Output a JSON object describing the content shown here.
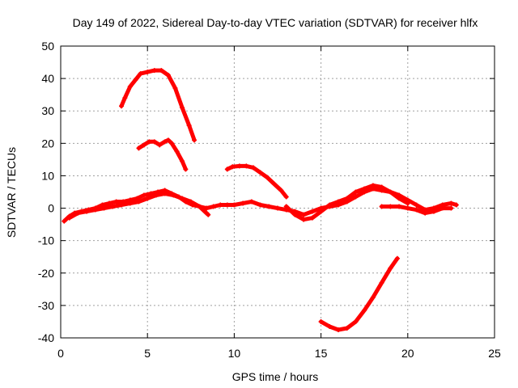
{
  "chart_data": {
    "type": "scatter",
    "title": "Day 149 of 2022, Sidereal Day-to-day VTEC variation (SDTVAR) for receiver hlfx",
    "xlabel": "GPS time / hours",
    "ylabel": "SDTVAR / TECUs",
    "xlim": [
      0,
      25
    ],
    "ylim": [
      -40,
      50
    ],
    "xticks": [
      0,
      5,
      10,
      15,
      20,
      25
    ],
    "yticks": [
      -40,
      -30,
      -20,
      -10,
      0,
      10,
      20,
      30,
      40,
      50
    ],
    "grid": true,
    "series_color": "#ff0000",
    "series": [
      {
        "name": "arc-main-a",
        "x": [
          0.2,
          0.5,
          0.8,
          1.2,
          1.6,
          2.0,
          2.4,
          2.8,
          3.2,
          3.6,
          4.0,
          4.4,
          4.8,
          5.2,
          5.6,
          6.0,
          6.4,
          6.8,
          7.2,
          7.6,
          8.0,
          8.4,
          8.8,
          9.2,
          9.6,
          10.0,
          10.5,
          11.0,
          11.5,
          12.0,
          12.5,
          13.0,
          13.5,
          14.0,
          14.5,
          15.0,
          15.5,
          16.0,
          16.5,
          17.0,
          17.5,
          18.0,
          18.5,
          19.0,
          19.5,
          20.0,
          20.5,
          21.0,
          21.5,
          22.0,
          22.5,
          22.8
        ],
        "y": [
          -4,
          -2.5,
          -1.5,
          -1,
          -0.5,
          0,
          1,
          1.5,
          2,
          2,
          2.5,
          3,
          4,
          4.5,
          5,
          5.5,
          4.5,
          3.5,
          2,
          1,
          0.5,
          0,
          0.5,
          1,
          1,
          1,
          1.5,
          2,
          1,
          0.5,
          0,
          -0.5,
          -1,
          -2,
          -1,
          0,
          0.5,
          1,
          2,
          3.5,
          5,
          6,
          5.5,
          5,
          4,
          2.5,
          1,
          -0.5,
          0,
          1,
          1.5,
          1
        ]
      },
      {
        "name": "arc-main-b",
        "x": [
          0.5,
          1.0,
          1.5,
          2.0,
          2.5,
          3.0,
          3.5,
          4.0,
          4.5,
          5.0,
          5.5,
          6.0,
          6.5,
          7.0,
          7.5,
          8.0,
          8.5
        ],
        "y": [
          -3,
          -1.5,
          -1,
          -0.5,
          0,
          0.5,
          1,
          1.5,
          2,
          3,
          4,
          4.5,
          4,
          3,
          2,
          0.5,
          -2
        ]
      },
      {
        "name": "arc-hump-40",
        "x": [
          3.5,
          3.7,
          4.0,
          4.3,
          4.6,
          5.0,
          5.4,
          5.8,
          6.2,
          6.6,
          7.0,
          7.4,
          7.7
        ],
        "y": [
          31.5,
          34,
          37.5,
          39.5,
          41.5,
          42,
          42.5,
          42.5,
          41,
          37,
          31,
          25.5,
          21
        ]
      },
      {
        "name": "arc-hump-20",
        "x": [
          4.5,
          4.8,
          5.1,
          5.4,
          5.7,
          6.0,
          6.2,
          6.4,
          6.7,
          7.0,
          7.2
        ],
        "y": [
          18.5,
          19.5,
          20.5,
          20.5,
          19.5,
          20.5,
          21,
          20,
          17.5,
          14.5,
          12
        ]
      },
      {
        "name": "arc-10",
        "x": [
          9.6,
          9.9,
          10.3,
          10.7,
          11.1,
          11.5,
          11.9,
          12.3,
          12.7,
          13.0
        ],
        "y": [
          12,
          12.8,
          13,
          13,
          12.5,
          11,
          9.5,
          7.5,
          5.5,
          3.5
        ]
      },
      {
        "name": "arc-dip-neg",
        "x": [
          15.0,
          15.5,
          16.0,
          16.5,
          17.0,
          17.5,
          18.0,
          18.5,
          19.0,
          19.4
        ],
        "y": [
          -35,
          -36.5,
          -37.5,
          -37,
          -35,
          -31.5,
          -27.5,
          -23,
          -18.5,
          -15.5
        ]
      },
      {
        "name": "arc-late",
        "x": [
          18.5,
          19.0,
          19.5,
          20.0,
          20.5,
          21.0,
          21.5,
          22.0,
          22.5
        ],
        "y": [
          0.5,
          0.5,
          0.5,
          0,
          -0.5,
          -1.5,
          -1,
          0,
          0
        ]
      },
      {
        "name": "arc-mid",
        "x": [
          13.0,
          13.5,
          14.0,
          14.5,
          15.0,
          15.5,
          16.0,
          16.5,
          17.0,
          17.5,
          18.0,
          18.5,
          19.0,
          19.5,
          20.0
        ],
        "y": [
          0.5,
          -2,
          -3.5,
          -3,
          -1,
          1,
          2,
          3,
          5,
          6,
          7,
          6.5,
          5,
          3,
          1.5
        ]
      }
    ]
  }
}
